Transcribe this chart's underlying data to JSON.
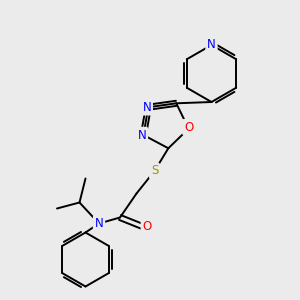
{
  "background_color": "#ebebeb",
  "bond_color": "#000000",
  "nitrogen_color": "#0000ff",
  "oxygen_color": "#ff0000",
  "sulfur_color": "#999900",
  "figsize": [
    3.0,
    3.0
  ],
  "dpi": 100,
  "lw": 1.4,
  "fs": 8.5,
  "xlim": [
    0,
    10
  ],
  "ylim": [
    0,
    10
  ]
}
